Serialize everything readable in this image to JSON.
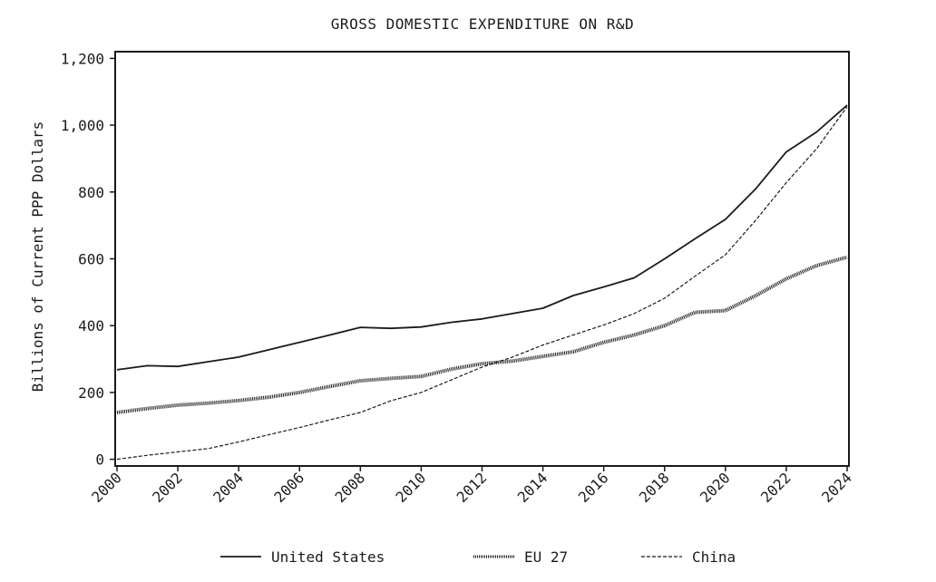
{
  "chart_data": {
    "type": "line",
    "title": "GROSS DOMESTIC EXPENDITURE ON R&D",
    "xlabel": "",
    "ylabel": "Billions of Current PPP Dollars",
    "x": [
      2000,
      2001,
      2002,
      2003,
      2004,
      2005,
      2006,
      2007,
      2008,
      2009,
      2010,
      2011,
      2012,
      2013,
      2014,
      2015,
      2016,
      2017,
      2018,
      2019,
      2020,
      2021,
      2022,
      2023,
      2024
    ],
    "xticks": [
      "2000",
      "2002",
      "2004",
      "2006",
      "2008",
      "2010",
      "2012",
      "2014",
      "2016",
      "2018",
      "2020",
      "2022",
      "2024"
    ],
    "xlim": [
      2000,
      2024
    ],
    "ylim": [
      -20,
      1220
    ],
    "yticks": [
      0,
      200,
      400,
      600,
      800,
      1000,
      1200
    ],
    "ytick_labels": [
      "0",
      "200",
      "400",
      "600",
      "800",
      "1,000",
      "1,200"
    ],
    "grid": false,
    "legend_position": "bottom",
    "series": [
      {
        "name": "United States",
        "style": "solid",
        "color": "#1a1a1a",
        "values": [
          268,
          280,
          278,
          292,
          306,
          328,
          350,
          372,
          395,
          392,
          396,
          410,
          420,
          436,
          452,
          490,
          516,
          543,
          600,
          660,
          718,
          810,
          920,
          980,
          1060
        ]
      },
      {
        "name": "EU 27",
        "style": "hatched",
        "color": "#1a1a1a",
        "values": [
          140,
          152,
          162,
          168,
          176,
          186,
          200,
          218,
          235,
          242,
          248,
          270,
          286,
          294,
          308,
          322,
          350,
          372,
          400,
          440,
          445,
          490,
          540,
          580,
          605
        ]
      },
      {
        "name": "China",
        "style": "dashed",
        "color": "#1a1a1a",
        "values": [
          0,
          12,
          22,
          32,
          52,
          74,
          95,
          118,
          140,
          175,
          200,
          238,
          276,
          306,
          342,
          372,
          402,
          436,
          482,
          548,
          612,
          716,
          828,
          930,
          1055
        ]
      }
    ]
  }
}
